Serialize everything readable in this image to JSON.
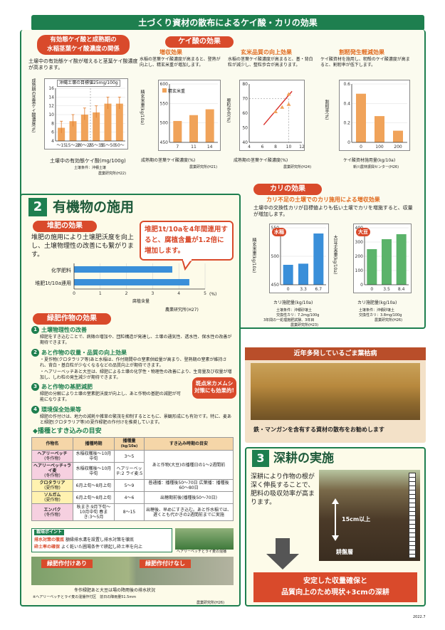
{
  "header": {
    "title": "土づくり資材の散布によるケイ酸・カリの効果"
  },
  "sec1": {
    "title_l1": "有効態ケイ酸と成熟期の",
    "title_l2": "水稲茎葉ケイ酸濃度の関係",
    "desc": "土壌中の有効態ケイ酸が増えると茎葉ケイ酸濃度が高まります。",
    "chart_title": "沖縄土壌の目標値25mg/100g",
    "ylabel": "成熟期の茎葉ケイ酸濃度(%)",
    "xlabel": "土壌中の有効態ケイ酸(mg/100g)",
    "cond": "土壌条件：沖積土壌",
    "source": "農業研究所(H22)"
  },
  "silica": {
    "title": "ケイ酸の効果",
    "c1_title": "増収効果",
    "c1_desc": "水稲の茎葉ケイ酸濃度が高まると、登熟が向上し、精玄米重が増加します。",
    "c1_legend": "精玄米重",
    "c1_ylabel": "精玄米重(kg/10a)",
    "c1_xlabel": "成熟期の茎葉ケイ酸濃度(%)",
    "c1_source": "農業研究所(H21)",
    "c2_title": "玄米品質の向上効果",
    "c2_desc": "水稲の茎葉ケイ酸濃度が高まると、基・背白粒が減少し、整粒歩合が高まります。",
    "c2_ylabel": "整粒歩合(%)",
    "c2_xlabel": "成熟期の茎葉ケイ酸濃度(%)",
    "c2_source": "農業研究所(H24)",
    "c3_title": "割籾発生軽減効果",
    "c3_desc": "ケイ酸資材を施用し、籾殻のケイ酸濃度が高まると、割籾率が低下します。",
    "c3_ylabel": "割籾率(%)",
    "c3_xlabel": "ケイ酸資材施用量(kg/10a)",
    "c3_source": "新川農林振興センター(H26)"
  },
  "potash": {
    "title": "カリの効果",
    "subtitle": "カリ不足の土壌でのカリ施用による増収効果",
    "desc": "土壌中の交換性カリが目標値よりも低い土壌でカリを増施すると、収量が増加します。",
    "rice_label": "水稲",
    "soy_label": "大豆",
    "ylabel_l": "精玄米重(kg/10a)",
    "ylabel_r": "大豆子実重(kg/10a)",
    "xlabel": "カリ施肥量(kg/10a)",
    "note_l1": "土壌条件：沖積砂壌土",
    "note_l2": "交換性カリ：7.2mg/100g",
    "note_l3": "3年間の一処理施肥試験、3年目",
    "src_l": "農業研究所(H23)",
    "note_r1": "土壌条件：沖積砂壌土",
    "note_r2": "交換性カリ：3.8mg/100g",
    "src_r": "農業研究所(H26)"
  },
  "sec2": {
    "num": "2",
    "title": "有機物の施用",
    "compost_title": "堆肥の効果",
    "compost_desc": "堆肥の施用により土壌肥沃度を向上し、土壌物理性の改善にも繋がります。",
    "callout": "堆肥1t/10aを4年間連用すると、腐植含量が1.2倍に増加します。",
    "bar_l1": "化学肥料",
    "bar_l2": "堆肥1t/10a連用",
    "bar_xlabel": "腐植含量",
    "bar_unit": "(%)",
    "bar_source": "農業研究所(H27)",
    "green_title": "緑肥作物の効果",
    "p1_t": "土壌物理性の改善",
    "p1_d": "緑肥をすき込むことで、病徴の増加や、団粒構造が発達し、土壌の通気性、透水性、保水性の改善が期待できます。",
    "p2_t": "あと作物の収量・品質の向上効果",
    "p2_d1": "・夏作物(クロタラリア等)あと水稲は、作付期間中の窒素供給量が高まり、登熟期の窒素が維持され、背白・基白粒が少なくなるなどの品質向上が期待できます。",
    "p2_d2": "・ヘアリーベッチあと大豆は、緑肥による土壌の化学性・物理性の改善により、生育量及び収量が増加し、しわ粒の発生減少が期待できます。",
    "p3_t": "あと作物の基肥減肥",
    "p3_d": "緑肥の分解により土壌の窒素肥沃度が向上し、あと作物の基肥の減肥が可能になります。",
    "p4_t": "環境保全効果等",
    "p4_d": "緑肥の作付けは、地力の減耗や雑草の繁茂を抑制するとともに、景観形成にも有効です。特に、麦あと緑肥(クロタラリア等)の夏作緑肥の作付けを推奨しています。",
    "stink": "斑点米カメムシ対策にも効果的!",
    "table_title": "播種とすき込みの目安",
    "th1": "作物名",
    "th2": "播種時期",
    "th3": "播種量",
    "th3b": "(kg/10a)",
    "th4": "すき込み時期の目安",
    "rows": [
      {
        "name": "ヘアリーベッチ",
        "season": "(冬作物)",
        "time": "水稲収穫後〜10月中旬",
        "amt": "3〜5",
        "plow": "あと作物(大豆)の播種日の1〜2週間前"
      },
      {
        "name": "ヘアリーベッチ+ライ麦",
        "season": "(冬作物)",
        "time": "水稲収穫後〜10月中旬",
        "amt": "ヘアリーベッチ:2 ライ麦:5",
        "plow": ""
      },
      {
        "name": "クロタラリア",
        "season": "(夏作物)",
        "time": "6月上旬〜8月上旬",
        "amt": "5〜9",
        "plow": "普通播：播種後50〜70日 広葉播：播種後60〜80日"
      },
      {
        "name": "ソルガム",
        "season": "(夏作物)",
        "time": "6月上旬〜8月上旬",
        "amt": "4〜6",
        "plow": "出穂期前後(播種後50〜70日)"
      },
      {
        "name": "エンバク",
        "season": "(冬作物)",
        "time": "秋まき:9月下旬〜10月中旬 春まき:3〜5月",
        "amt": "8〜15",
        "plow": "出穂後、早めにすき込む。あと作水稲では、遅くとも代かきの2週間前までに実施"
      }
    ],
    "point_title": "栽培ポイント",
    "point1_t": "排水対策の徹底",
    "point1_d": "額縁排水溝を設置し排水対策を徹底",
    "point2_t": "砕土率の確保",
    "point2_d": "よく乾いた圃場条件で耕起し砕土率を向上",
    "photo_caption": "ヘアリーベッチとライ麦の混播",
    "cmp_yes": "緑肥作付けあり",
    "cmp_no": "緑肥作付けなし",
    "cmp_caption": "冬作緑肥あと大豆は場の降雨後の排水状況",
    "cmp_note": "※ヘアリーベッチとライ麦の混播作付区　前日の降雨量51.5mm",
    "cmp_source": "農業研究所(H26)"
  },
  "disease": {
    "title": "近年多発しているごま葉枯病",
    "caption": "鉄・マンガンを含有する資材の散布をお勧めします"
  },
  "sec3": {
    "num": "3",
    "title": "深耕の実施",
    "desc": "深耕により作物の根が深く伸長することで、肥料の吸収効率が高まります。",
    "depth": "15cm以上",
    "hardpan": "耕盤層",
    "result_l1": "安定した収量確保と",
    "result_l2": "品質向上のため現状+3cmの深耕"
  },
  "footer": {
    "date": "2022.7"
  },
  "chart_data": [
    {
      "type": "bar",
      "id": "silica-soil",
      "categories": [
        "〜15",
        "15〜20",
        "20〜25",
        "25〜35",
        "35〜50",
        "50〜"
      ],
      "values": [
        7.0,
        8.5,
        10.0,
        10.5,
        12.5,
        12.5
      ],
      "ylim": [
        4,
        16
      ],
      "yticks": [
        4,
        6,
        8,
        10,
        12,
        14,
        16
      ]
    },
    {
      "type": "bar",
      "id": "yield",
      "categories": [
        "7",
        "11",
        "14"
      ],
      "values": [
        505,
        520,
        535
      ],
      "ylim": [
        450,
        600
      ],
      "yticks": [
        450,
        500,
        550,
        600
      ]
    },
    {
      "type": "scatter",
      "id": "quality",
      "x": [
        8,
        9,
        10,
        10
      ],
      "y": [
        61,
        64,
        66,
        73
      ],
      "xlim": [
        4,
        12
      ],
      "ylim": [
        40,
        80
      ],
      "xticks": [
        4,
        6,
        8,
        10,
        12
      ],
      "yticks": [
        40,
        50,
        60,
        70,
        80
      ],
      "ref_y": 70,
      "ref_x": 10
    },
    {
      "type": "bar",
      "id": "crack",
      "categories": [
        "0",
        "100",
        "200"
      ],
      "values": [
        0.5,
        0.27,
        0.12
      ],
      "ylim": [
        0,
        0.6
      ],
      "yticks": [
        "0",
        "0.2",
        "0.4",
        "0.6"
      ]
    },
    {
      "type": "bar",
      "id": "potash-rice",
      "categories": [
        "0",
        "3.3",
        "6.7"
      ],
      "values": [
        485,
        487,
        540
      ],
      "ylim": [
        450,
        550
      ],
      "yticks": [
        450,
        500,
        550
      ]
    },
    {
      "type": "bar",
      "id": "potash-soy",
      "categories": [
        "0",
        "3.5",
        "8.4"
      ],
      "values": [
        250,
        320,
        355
      ],
      "ylim": [
        0,
        400
      ],
      "yticks": [
        0,
        100,
        200,
        300,
        400
      ]
    },
    {
      "type": "bar",
      "id": "humus",
      "categories": [
        "化学肥料",
        "堆肥1t/10a連用"
      ],
      "values": [
        3.75,
        4.4
      ],
      "xlim": [
        0,
        5
      ],
      "xticks": [
        0,
        1,
        2,
        3,
        4,
        5
      ]
    }
  ]
}
